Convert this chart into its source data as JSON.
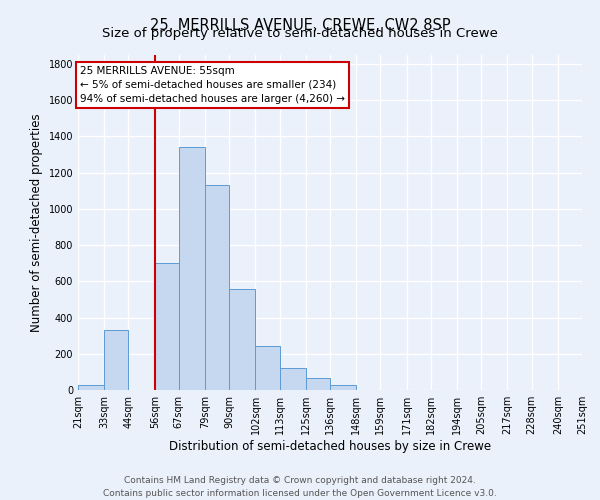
{
  "title1": "25, MERRILLS AVENUE, CREWE, CW2 8SP",
  "title2": "Size of property relative to semi-detached houses in Crewe",
  "xlabel": "Distribution of semi-detached houses by size in Crewe",
  "ylabel": "Number of semi-detached properties",
  "bin_labels": [
    "21sqm",
    "33sqm",
    "44sqm",
    "56sqm",
    "67sqm",
    "79sqm",
    "90sqm",
    "102sqm",
    "113sqm",
    "125sqm",
    "136sqm",
    "148sqm",
    "159sqm",
    "171sqm",
    "182sqm",
    "194sqm",
    "205sqm",
    "217sqm",
    "228sqm",
    "240sqm",
    "251sqm"
  ],
  "bin_edges": [
    21,
    33,
    44,
    56,
    67,
    79,
    90,
    102,
    113,
    125,
    136,
    148,
    159,
    171,
    182,
    194,
    205,
    217,
    228,
    240,
    251
  ],
  "bar_heights": [
    25,
    330,
    0,
    700,
    1340,
    1130,
    560,
    245,
    120,
    65,
    25,
    0,
    0,
    0,
    0,
    0,
    0,
    0,
    0,
    0
  ],
  "bar_color": "#c5d8f0",
  "bar_edge_color": "#5b9bd5",
  "red_line_x": 56,
  "annotation_title": "25 MERRILLS AVENUE: 55sqm",
  "annotation_line1": "← 5% of semi-detached houses are smaller (234)",
  "annotation_line2": "94% of semi-detached houses are larger (4,260) →",
  "annotation_box_color": "#ffffff",
  "annotation_box_edge": "#cc0000",
  "red_line_color": "#cc0000",
  "ylim": [
    0,
    1850
  ],
  "yticks": [
    0,
    200,
    400,
    600,
    800,
    1000,
    1200,
    1400,
    1600,
    1800
  ],
  "footer1": "Contains HM Land Registry data © Crown copyright and database right 2024.",
  "footer2": "Contains public sector information licensed under the Open Government Licence v3.0.",
  "bg_color": "#eaf1fb",
  "plot_bg_color": "#eaf1fb",
  "grid_color": "#ffffff",
  "title_fontsize": 10.5,
  "subtitle_fontsize": 9.5,
  "axis_label_fontsize": 8.5,
  "tick_fontsize": 7,
  "footer_fontsize": 6.5,
  "annotation_fontsize": 7.5
}
